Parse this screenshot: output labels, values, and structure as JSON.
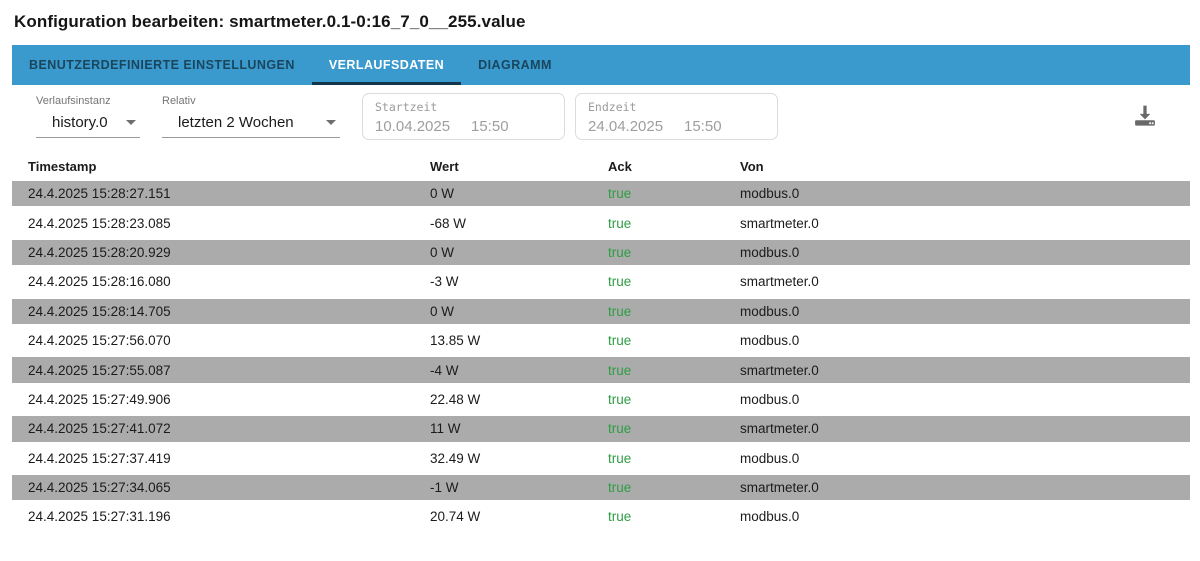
{
  "page": {
    "title": "Konfiguration bearbeiten: smartmeter.0.1-0:16_7_0__255.value"
  },
  "colors": {
    "tabbar_background": "#3a9acd",
    "active_tab_text": "#ffffff",
    "tab_indicator": "#14364a",
    "row_stripe": "#ababab",
    "ack_true_green": "#2e9e44",
    "disabled_text": "#9e9e9e"
  },
  "tabs": [
    {
      "label": "BENUTZERDEFINIERTE EINSTELLUNGEN",
      "active": false
    },
    {
      "label": "VERLAUFSDATEN",
      "active": true
    },
    {
      "label": "DIAGRAMM",
      "active": false
    }
  ],
  "filters": {
    "instance": {
      "label": "Verlaufsinstanz",
      "value": "history.0"
    },
    "relative": {
      "label": "Relativ",
      "value": "letzten 2 Wochen"
    },
    "start": {
      "label": "Startzeit",
      "date": "10.04.2025",
      "time": "15:50"
    },
    "end": {
      "label": "Endzeit",
      "date": "24.04.2025",
      "time": "15:50"
    }
  },
  "toolbar": {
    "download_icon": "download-icon"
  },
  "table": {
    "headers": [
      "Timestamp",
      "Wert",
      "Ack",
      "Von"
    ],
    "rows": [
      {
        "timestamp": "24.4.2025 15:28:27.151",
        "wert": "0 W",
        "ack": "true",
        "von": "modbus.0"
      },
      {
        "timestamp": "24.4.2025 15:28:23.085",
        "wert": "-68 W",
        "ack": "true",
        "von": "smartmeter.0"
      },
      {
        "timestamp": "24.4.2025 15:28:20.929",
        "wert": "0 W",
        "ack": "true",
        "von": "modbus.0"
      },
      {
        "timestamp": "24.4.2025 15:28:16.080",
        "wert": "-3 W",
        "ack": "true",
        "von": "smartmeter.0"
      },
      {
        "timestamp": "24.4.2025 15:28:14.705",
        "wert": "0 W",
        "ack": "true",
        "von": "modbus.0"
      },
      {
        "timestamp": "24.4.2025 15:27:56.070",
        "wert": "13.85 W",
        "ack": "true",
        "von": "modbus.0"
      },
      {
        "timestamp": "24.4.2025 15:27:55.087",
        "wert": "-4 W",
        "ack": "true",
        "von": "smartmeter.0"
      },
      {
        "timestamp": "24.4.2025 15:27:49.906",
        "wert": "22.48 W",
        "ack": "true",
        "von": "modbus.0"
      },
      {
        "timestamp": "24.4.2025 15:27:41.072",
        "wert": "11 W",
        "ack": "true",
        "von": "smartmeter.0"
      },
      {
        "timestamp": "24.4.2025 15:27:37.419",
        "wert": "32.49 W",
        "ack": "true",
        "von": "modbus.0"
      },
      {
        "timestamp": "24.4.2025 15:27:34.065",
        "wert": "-1 W",
        "ack": "true",
        "von": "smartmeter.0"
      },
      {
        "timestamp": "24.4.2025 15:27:31.196",
        "wert": "20.74 W",
        "ack": "true",
        "von": "modbus.0"
      }
    ]
  }
}
